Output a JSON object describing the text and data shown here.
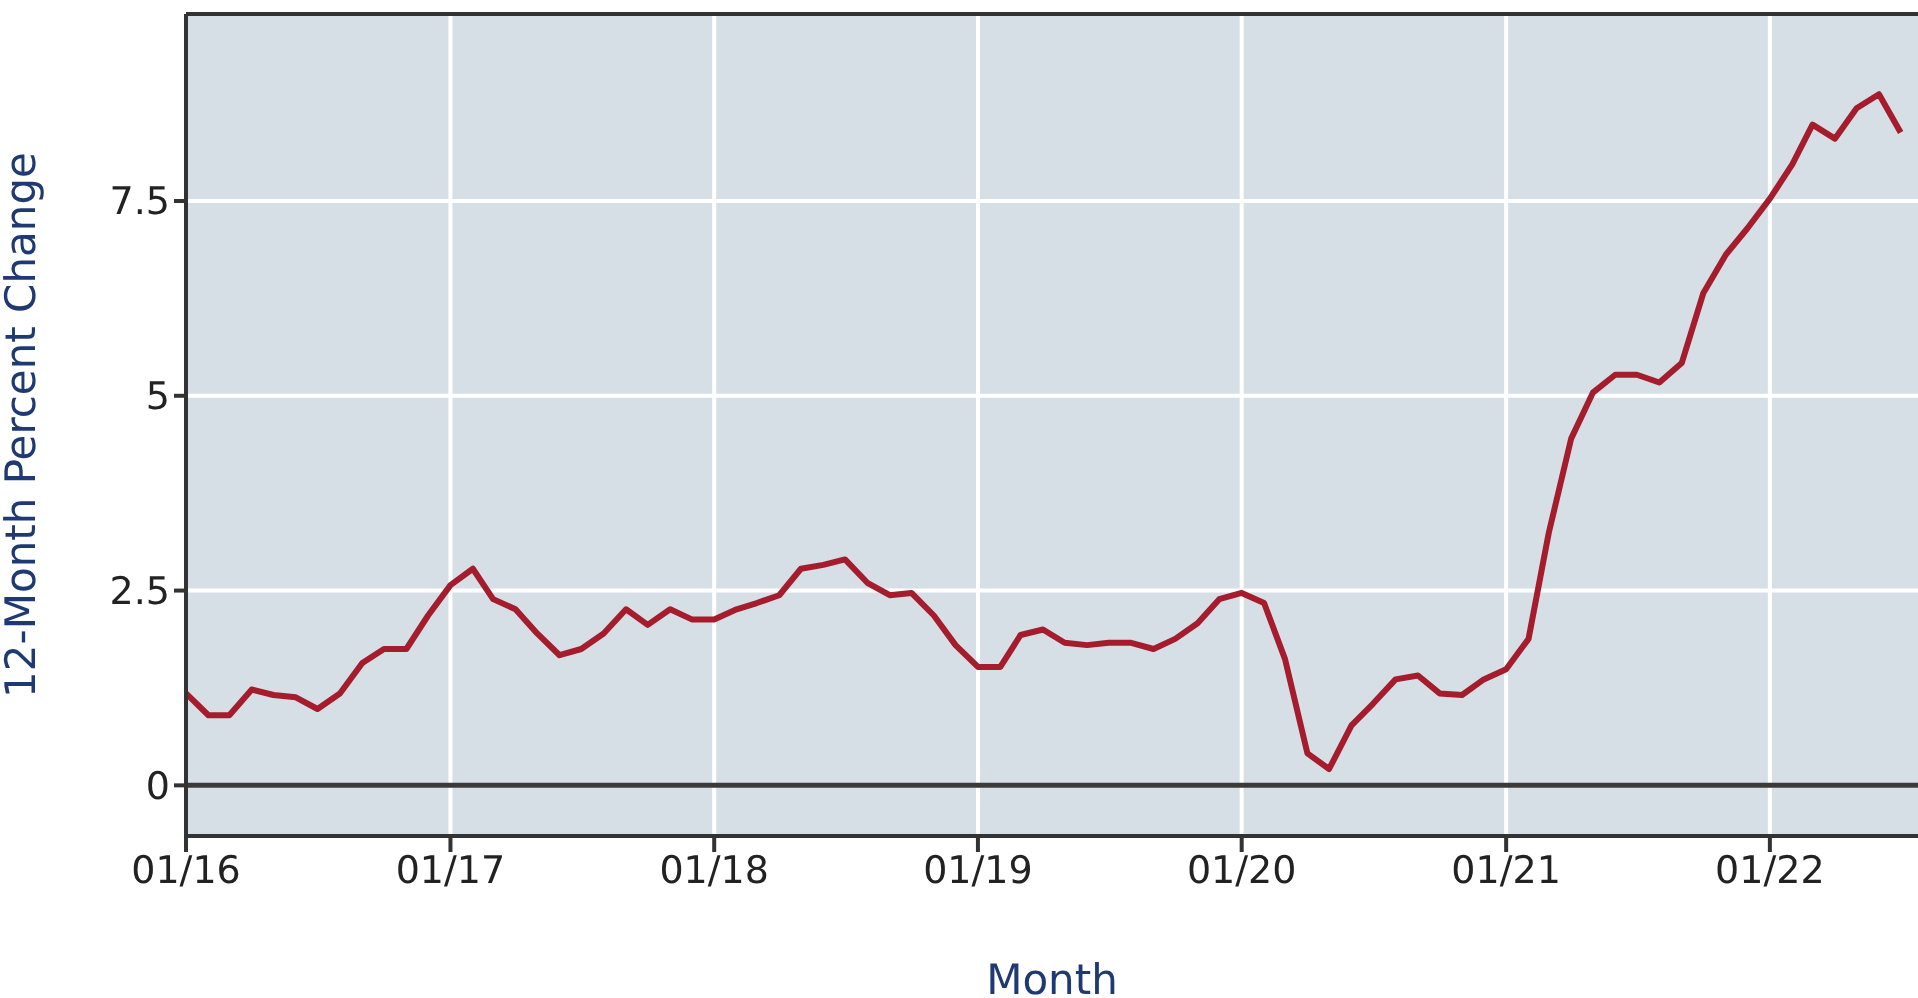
{
  "chart_data": {
    "type": "line",
    "xlabel": "Month",
    "ylabel": "12-Month Percent Change",
    "x": [
      "2016-01",
      "2016-02",
      "2016-03",
      "2016-04",
      "2016-05",
      "2016-06",
      "2016-07",
      "2016-08",
      "2016-09",
      "2016-10",
      "2016-11",
      "2016-12",
      "2017-01",
      "2017-02",
      "2017-03",
      "2017-04",
      "2017-05",
      "2017-06",
      "2017-07",
      "2017-08",
      "2017-09",
      "2017-10",
      "2017-11",
      "2017-12",
      "2018-01",
      "2018-02",
      "2018-03",
      "2018-04",
      "2018-05",
      "2018-06",
      "2018-07",
      "2018-08",
      "2018-09",
      "2018-10",
      "2018-11",
      "2018-12",
      "2019-01",
      "2019-02",
      "2019-03",
      "2019-04",
      "2019-05",
      "2019-06",
      "2019-07",
      "2019-08",
      "2019-09",
      "2019-10",
      "2019-11",
      "2019-12",
      "2020-01",
      "2020-02",
      "2020-03",
      "2020-04",
      "2020-05",
      "2020-06",
      "2020-07",
      "2020-08",
      "2020-09",
      "2020-10",
      "2020-11",
      "2020-12",
      "2021-01",
      "2021-02",
      "2021-03",
      "2021-04",
      "2021-05",
      "2021-06",
      "2021-07",
      "2021-08",
      "2021-09",
      "2021-10",
      "2021-11",
      "2021-12",
      "2022-01",
      "2022-02",
      "2022-03",
      "2022-04",
      "2022-05",
      "2022-06",
      "2022-07"
    ],
    "series": [
      {
        "color": "#a51c2c",
        "values": [
          1.18,
          0.9,
          0.9,
          1.23,
          1.16,
          1.13,
          0.98,
          1.18,
          1.57,
          1.75,
          1.75,
          2.18,
          2.57,
          2.78,
          2.39,
          2.26,
          1.95,
          1.67,
          1.75,
          1.95,
          2.26,
          2.06,
          2.26,
          2.13,
          2.13,
          2.26,
          2.34,
          2.44,
          2.78,
          2.83,
          2.9,
          2.6,
          2.44,
          2.47,
          2.18,
          1.8,
          1.52,
          1.52,
          1.93,
          2.0,
          1.83,
          1.8,
          1.83,
          1.83,
          1.75,
          1.88,
          2.08,
          2.39,
          2.47,
          2.34,
          1.62,
          0.41,
          0.21,
          0.77,
          1.05,
          1.36,
          1.41,
          1.18,
          1.16,
          1.36,
          1.49,
          1.88,
          3.24,
          4.45,
          5.04,
          5.27,
          5.27,
          5.17,
          5.42,
          6.32,
          6.81,
          7.15,
          7.53,
          7.97,
          8.48,
          8.3,
          8.69,
          8.87,
          8.38
        ]
      }
    ],
    "xlim": [
      "2016-01",
      "2022-07-25"
    ],
    "xticks": [
      {
        "value": "2016-01",
        "label": "01/16"
      },
      {
        "value": "2017-01",
        "label": "01/17"
      },
      {
        "value": "2018-01",
        "label": "01/18"
      },
      {
        "value": "2019-01",
        "label": "01/19"
      },
      {
        "value": "2020-01",
        "label": "01/20"
      },
      {
        "value": "2021-01",
        "label": "01/21"
      },
      {
        "value": "2022-01",
        "label": "01/22"
      }
    ],
    "ylim": [
      -0.65,
      9.9
    ],
    "yticks": [
      0,
      2.5,
      5,
      7.5
    ],
    "grid": true,
    "marker": "none",
    "line_style": "solid",
    "ref_lines": [
      {
        "axis": "y",
        "value": 0,
        "color": "#3a3a3a"
      }
    ]
  }
}
